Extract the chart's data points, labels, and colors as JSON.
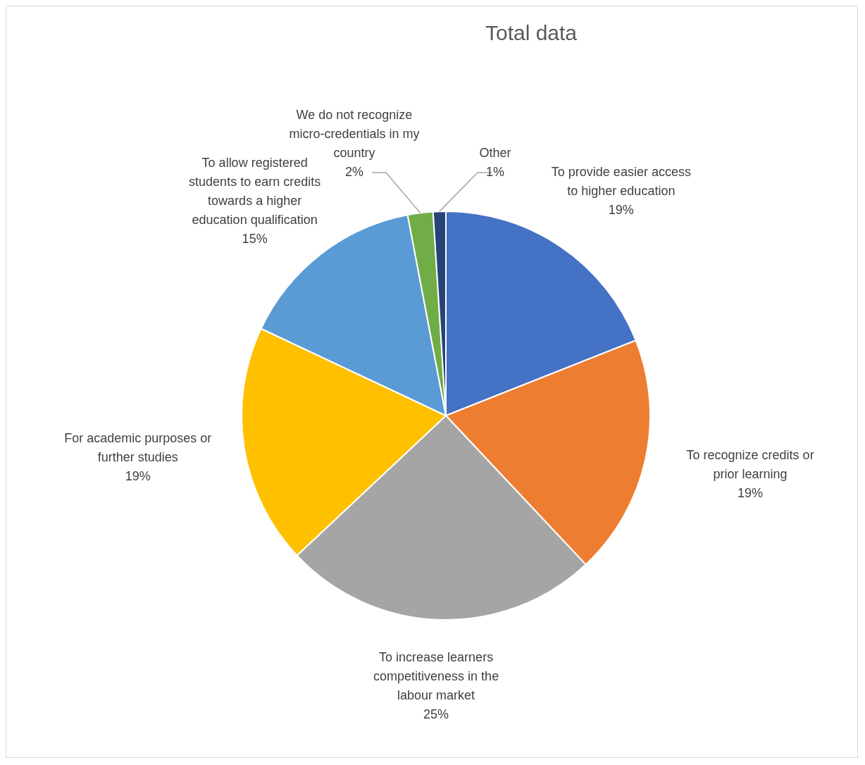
{
  "chart_data": {
    "type": "pie",
    "title": "Total data",
    "categories": [
      "To provide easier access to higher education",
      "To recognize credits or prior learning",
      "To increase learners competitiveness in the labour market",
      "For academic purposes or further studies",
      "To allow registered students to earn credits towards a higher education qualification",
      "We do not recognize micro-credentials in my country",
      "Other"
    ],
    "values": [
      19,
      19,
      25,
      19,
      15,
      2,
      1
    ],
    "value_labels": [
      "19%",
      "19%",
      "25%",
      "19%",
      "15%",
      "2%",
      "1%"
    ],
    "colors": [
      "#4472c4",
      "#ed7d31",
      "#a5a5a5",
      "#ffc000",
      "#5b9bd5",
      "#70ad47",
      "#264478"
    ],
    "legend": false
  }
}
